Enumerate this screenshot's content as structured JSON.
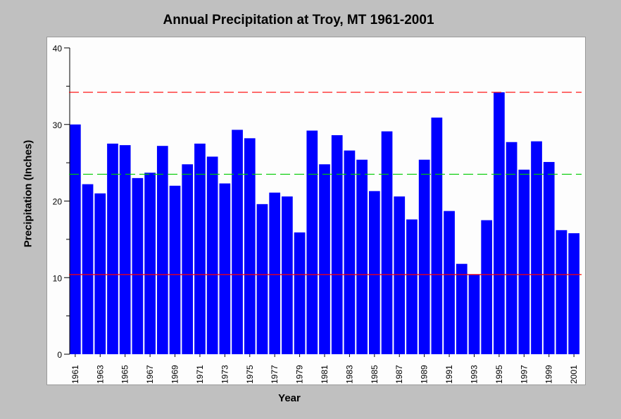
{
  "chart_data": {
    "type": "bar",
    "title": "Annual Precipitation at Troy, MT 1961-2001",
    "xlabel": "Year",
    "ylabel": "Precipitation (Inches)",
    "ylim": [
      0,
      40
    ],
    "yticks": [
      0,
      10,
      20,
      30,
      40
    ],
    "grid": false,
    "legend": "none",
    "bar_color": "#0000ff",
    "categories": [
      "1961",
      "1962",
      "1963",
      "1964",
      "1965",
      "1966",
      "1967",
      "1968",
      "1969",
      "1970",
      "1971",
      "1972",
      "1973",
      "1974",
      "1975",
      "1976",
      "1977",
      "1978",
      "1979",
      "1980",
      "1981",
      "1982",
      "1983",
      "1984",
      "1985",
      "1986",
      "1987",
      "1988",
      "1989",
      "1990",
      "1991",
      "1992",
      "1993",
      "1994",
      "1995",
      "1996",
      "1997",
      "1998",
      "1999",
      "2000",
      "2001"
    ],
    "x_tick_labels": [
      "1961",
      "1963",
      "1965",
      "1967",
      "1969",
      "1971",
      "1973",
      "1975",
      "1977",
      "1979",
      "1981",
      "1983",
      "1985",
      "1987",
      "1989",
      "1991",
      "1993",
      "1995",
      "1997",
      "1999",
      "2001"
    ],
    "values": [
      30.0,
      22.2,
      21.0,
      27.5,
      27.3,
      23.0,
      23.7,
      27.2,
      22.0,
      24.8,
      27.5,
      25.8,
      22.3,
      29.3,
      28.2,
      19.6,
      21.1,
      20.6,
      15.9,
      29.2,
      24.8,
      28.6,
      26.6,
      25.4,
      21.3,
      29.1,
      20.6,
      17.6,
      25.4,
      30.9,
      18.7,
      11.8,
      10.4,
      17.5,
      34.2,
      27.7,
      24.1,
      27.8,
      25.1,
      16.2,
      15.8
    ],
    "reference_lines": [
      {
        "value": 34.2,
        "color": "#ff0000",
        "style": "dashed"
      },
      {
        "value": 23.5,
        "color": "#00cc00",
        "style": "dashed"
      },
      {
        "value": 10.4,
        "color": "#ff0000",
        "style": "solid"
      }
    ]
  }
}
